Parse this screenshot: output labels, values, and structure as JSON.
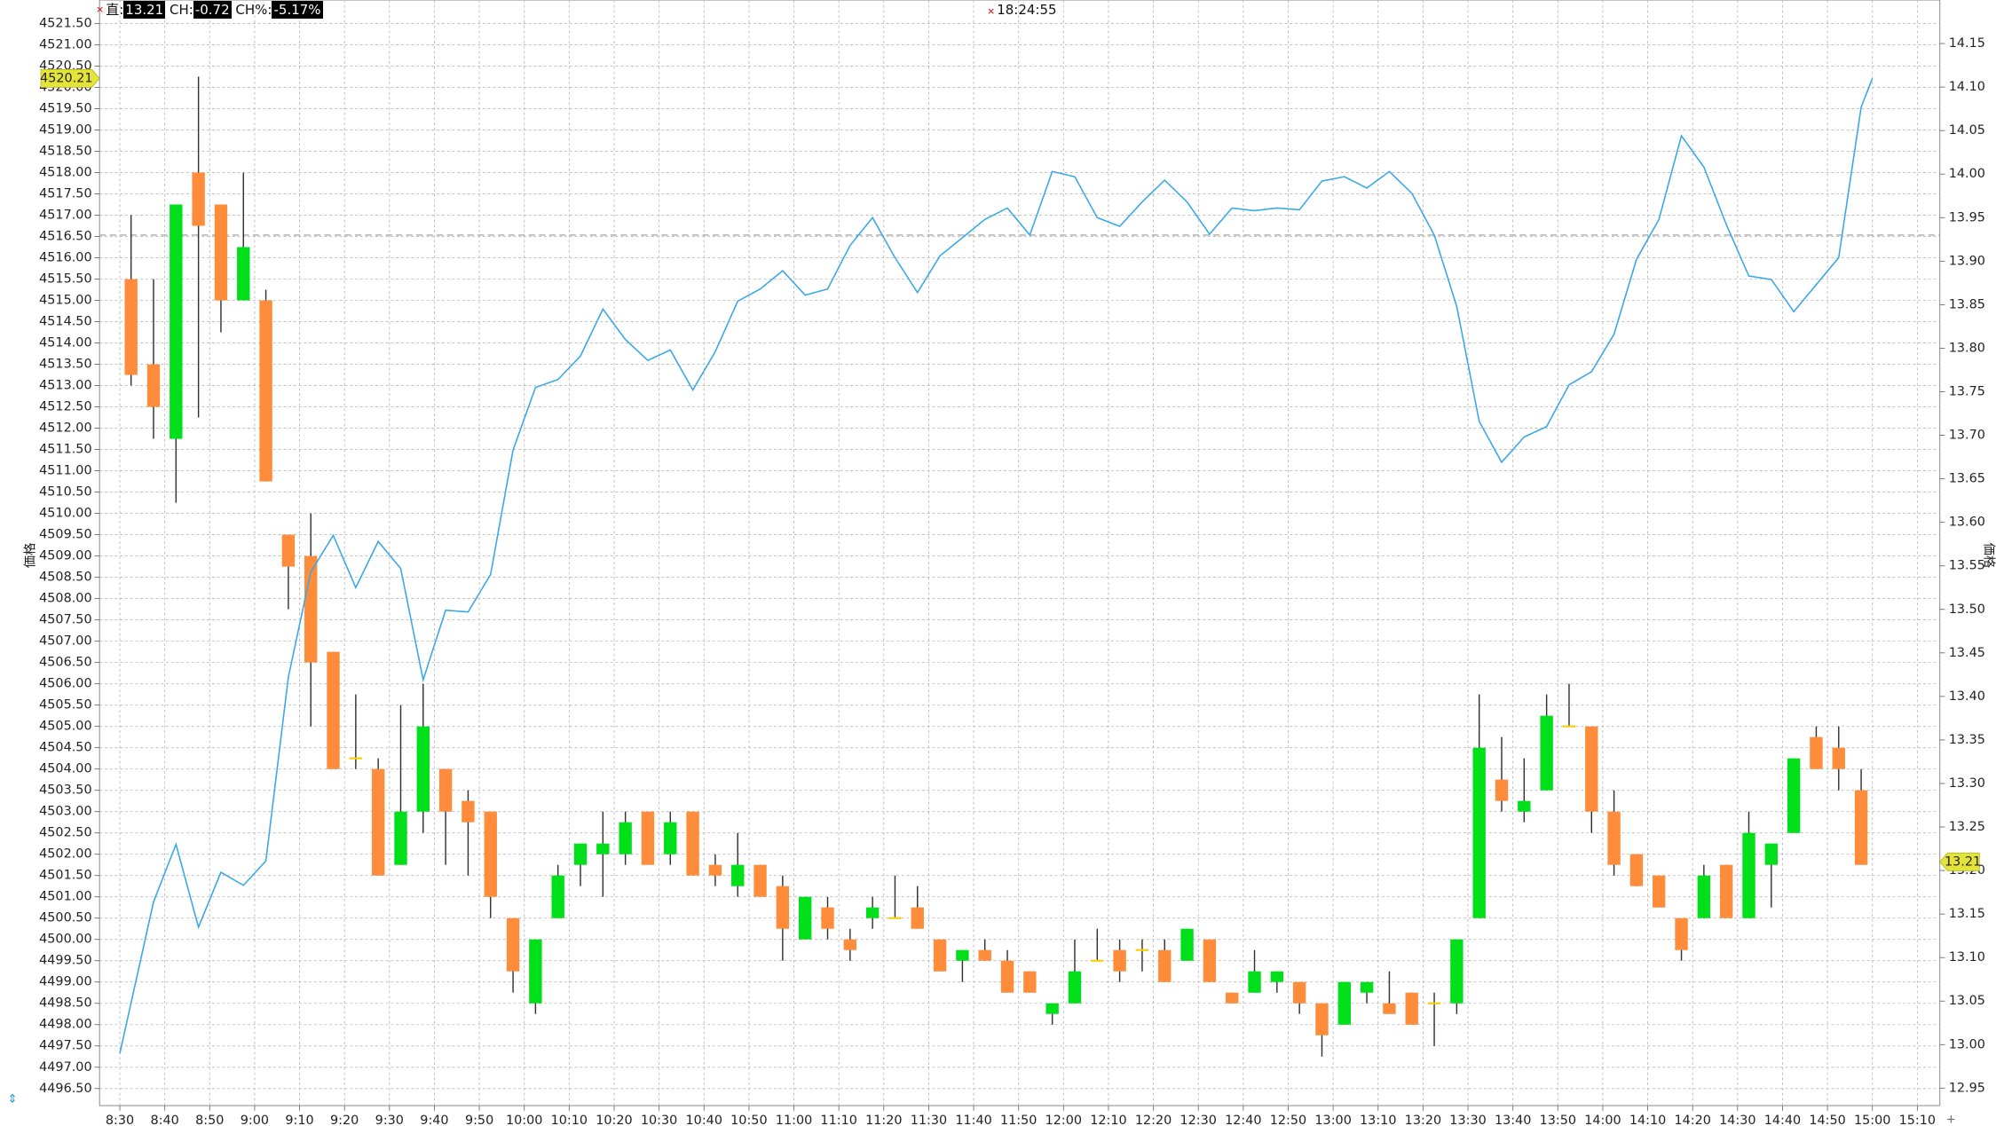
{
  "header": {
    "price_label": "直:",
    "price": "13.21",
    "change_label": "CH:",
    "change": "-0.72",
    "change_pct_label": "CH%:",
    "change_pct": "-5.17%",
    "time": "18:24:55"
  },
  "chart_data": {
    "type": "candlestick",
    "y_label": "価格",
    "y2_label": "価格",
    "grid": true,
    "up_color": "#00e01a",
    "down_color": "#ff8c3a",
    "doji_color": "#f5d000",
    "x": [
      512.5,
      517.5,
      522.5,
      527.5,
      532.5,
      537.5,
      542.5,
      547.5,
      552.5,
      557.5,
      562.5,
      567.5,
      572.5,
      577.5,
      582.5,
      587.5,
      592.5,
      597.5,
      602.5,
      607.5,
      612.5,
      617.5,
      622.5,
      627.5,
      632.5,
      637.5,
      642.5,
      647.5,
      652.5,
      657.5,
      662.5,
      667.5,
      672.5,
      677.5,
      682.5,
      687.5,
      692.5,
      697.5,
      702.5,
      707.5,
      712.5,
      717.5,
      722.5,
      727.5,
      732.5,
      737.5,
      742.5,
      747.5,
      752.5,
      757.5,
      762.5,
      767.5,
      772.5,
      777.5,
      782.5,
      787.5,
      792.5,
      797.5,
      802.5,
      807.5,
      812.5,
      817.5,
      822.5,
      827.5,
      832.5,
      837.5,
      842.5,
      847.5,
      852.5,
      857.5,
      862.5,
      867.5,
      872.5,
      877.5,
      882.5,
      887.5,
      892.5,
      897.5
    ],
    "open": [
      4515.5,
      4513.5,
      4511.75,
      4518.0,
      4517.25,
      4515.0,
      4515.0,
      4509.5,
      4509.0,
      4506.75,
      4504.25,
      4504.0,
      4501.75,
      4503.0,
      4504.0,
      4503.25,
      4503.0,
      4500.5,
      4498.5,
      4500.5,
      4501.75,
      4502.0,
      4502.0,
      4503.0,
      4502.0,
      4503.0,
      4501.75,
      4501.25,
      4501.75,
      4501.25,
      4500.0,
      4500.75,
      4500.0,
      4500.5,
      4500.5,
      4500.75,
      4500.0,
      4499.5,
      4499.75,
      4499.5,
      4499.25,
      4498.25,
      4498.5,
      4499.5,
      4499.75,
      4499.75,
      4499.75,
      4499.5,
      4500.0,
      4498.75,
      4498.75,
      4499.0,
      4499.0,
      4498.5,
      4498.0,
      4498.75,
      4498.5,
      4498.75,
      4498.5,
      4498.5,
      4500.5,
      4503.75,
      4503.0,
      4503.5,
      4505.0,
      4505.0,
      4503.0,
      4502.0,
      4501.5,
      4500.5,
      4500.5,
      4501.75,
      4500.5,
      4501.75,
      4502.5,
      4504.75,
      4504.5,
      4503.5
    ],
    "high": [
      4517.0,
      4515.5,
      4517.25,
      4520.25,
      4517.25,
      4518.0,
      4515.25,
      4509.5,
      4510.0,
      4506.75,
      4505.75,
      4504.25,
      4505.5,
      4506.0,
      4504.0,
      4503.5,
      4503.0,
      4500.5,
      4500.0,
      4501.75,
      4502.25,
      4503.0,
      4503.0,
      4503.0,
      4503.0,
      4503.0,
      4502.0,
      4502.5,
      4501.75,
      4501.5,
      4501.0,
      4501.0,
      4500.25,
      4501.0,
      4501.5,
      4501.25,
      4500.0,
      4499.75,
      4500.0,
      4499.75,
      4499.25,
      4498.5,
      4500.0,
      4500.25,
      4500.0,
      4500.0,
      4500.0,
      4500.25,
      4500.0,
      4498.75,
      4499.75,
      4499.25,
      4499.0,
      4498.5,
      4499.0,
      4499.0,
      4499.25,
      4498.75,
      4498.75,
      4500.0,
      4505.75,
      4504.75,
      4504.25,
      4505.75,
      4506.0,
      4505.0,
      4503.5,
      4502.0,
      4501.5,
      4500.5,
      4501.75,
      4501.75,
      4503.0,
      4502.25,
      4504.25,
      4505.0,
      4505.0,
      4504.0
    ],
    "low": [
      4513.0,
      4511.75,
      4510.25,
      4512.25,
      4514.25,
      4515.0,
      4510.75,
      4507.75,
      4505.0,
      4504.0,
      4504.0,
      4501.5,
      4501.75,
      4502.5,
      4501.75,
      4501.5,
      4500.5,
      4498.75,
      4498.25,
      4500.5,
      4501.25,
      4501.0,
      4501.75,
      4501.75,
      4501.75,
      4501.5,
      4501.25,
      4501.0,
      4501.0,
      4499.5,
      4500.0,
      4500.0,
      4499.5,
      4500.25,
      4500.5,
      4500.25,
      4499.25,
      4499.0,
      4499.5,
      4498.75,
      4498.75,
      4498.0,
      4498.5,
      4499.5,
      4499.0,
      4499.25,
      4499.0,
      4499.5,
      4499.0,
      4498.5,
      4498.75,
      4498.75,
      4498.25,
      4497.25,
      4498.0,
      4498.5,
      4498.25,
      4498.0,
      4497.5,
      4498.25,
      4500.5,
      4503.0,
      4502.75,
      4503.5,
      4505.0,
      4502.5,
      4501.5,
      4501.25,
      4500.75,
      4499.5,
      4500.5,
      4500.5,
      4500.5,
      4500.75,
      4502.5,
      4504.0,
      4503.5,
      4501.75
    ],
    "close": [
      4513.25,
      4512.5,
      4517.25,
      4516.75,
      4515.0,
      4516.25,
      4510.75,
      4508.75,
      4506.5,
      4504.0,
      4504.25,
      4501.5,
      4503.0,
      4505.0,
      4503.0,
      4502.75,
      4501.0,
      4499.25,
      4500.0,
      4501.5,
      4502.25,
      4502.25,
      4502.75,
      4501.75,
      4502.75,
      4501.5,
      4501.5,
      4501.75,
      4501.0,
      4500.25,
      4501.0,
      4500.25,
      4499.75,
      4500.75,
      4500.5,
      4500.25,
      4499.25,
      4499.75,
      4499.5,
      4498.75,
      4498.75,
      4498.5,
      4499.25,
      4499.5,
      4499.25,
      4499.75,
      4499.0,
      4500.25,
      4499.0,
      4498.5,
      4499.25,
      4499.25,
      4498.5,
      4497.75,
      4499.0,
      4499.0,
      4498.25,
      4498.0,
      4498.5,
      4500.0,
      4504.5,
      4503.25,
      4503.25,
      4505.25,
      4505.0,
      4503.0,
      4501.75,
      4501.25,
      4500.75,
      4499.75,
      4501.5,
      4500.5,
      4502.5,
      4502.25,
      4504.25,
      4504.0,
      4504.0,
      4501.75
    ],
    "line": {
      "type": "line",
      "axis": "y2",
      "color": "#3aa8e8",
      "x": [
        510,
        517.5,
        522.5,
        527.5,
        532.5,
        537.5,
        542.5,
        547.5,
        552.5,
        557.5,
        562.5,
        567.5,
        572.5,
        577.5,
        582.5,
        587.5,
        592.5,
        597.5,
        602.5,
        607.5,
        612.5,
        617.5,
        622.5,
        627.5,
        632.5,
        637.5,
        642.5,
        647.5,
        652.5,
        657.5,
        662.5,
        667.5,
        672.5,
        677.5,
        682.5,
        687.5,
        692.5,
        697.5,
        702.5,
        707.5,
        712.5,
        717.5,
        722.5,
        727.5,
        732.5,
        737.5,
        742.5,
        747.5,
        752.5,
        757.5,
        762.5,
        767.5,
        772.5,
        777.5,
        782.5,
        787.5,
        792.5,
        797.5,
        802.5,
        807.5,
        812.5,
        817.5,
        822.5,
        827.5,
        832.5,
        837.5,
        842.5,
        847.5,
        852.5,
        857.5,
        862.5,
        867.5,
        872.5,
        877.5,
        882.5,
        887.5,
        892.5,
        897.5,
        900
      ],
      "values": [
        12.99,
        13.164,
        13.23,
        13.135,
        13.198,
        13.183,
        13.211,
        13.422,
        13.543,
        13.585,
        13.525,
        13.578,
        13.547,
        13.419,
        13.499,
        13.497,
        13.54,
        13.683,
        13.755,
        13.764,
        13.791,
        13.845,
        13.81,
        13.786,
        13.798,
        13.752,
        13.796,
        13.854,
        13.868,
        13.889,
        13.861,
        13.868,
        13.918,
        13.95,
        13.904,
        13.864,
        13.906,
        13.927,
        13.948,
        13.961,
        13.93,
        14.003,
        13.997,
        13.95,
        13.94,
        13.968,
        13.993,
        13.968,
        13.931,
        13.961,
        13.958,
        13.961,
        13.959,
        13.992,
        13.997,
        13.984,
        14.003,
        13.978,
        13.93,
        13.848,
        13.716,
        13.669,
        13.698,
        13.71,
        13.758,
        13.773,
        13.816,
        13.902,
        13.948,
        14.044,
        14.008,
        13.942,
        13.883,
        13.879,
        13.842,
        13.873,
        13.904,
        14.077,
        14.11
      ]
    },
    "y2_ref_line": 13.93,
    "y_marker": 4520.21,
    "y2_marker": 13.21,
    "xlim": [
      505.5,
      915
    ],
    "xticks": [
      {
        "value": 510,
        "label": "8:30"
      },
      {
        "value": 520,
        "label": "8:40"
      },
      {
        "value": 530,
        "label": "8:50"
      },
      {
        "value": 540,
        "label": "9:00"
      },
      {
        "value": 550,
        "label": "9:10"
      },
      {
        "value": 560,
        "label": "9:20"
      },
      {
        "value": 570,
        "label": "9:30"
      },
      {
        "value": 580,
        "label": "9:40"
      },
      {
        "value": 590,
        "label": "9:50"
      },
      {
        "value": 600,
        "label": "10:00"
      },
      {
        "value": 610,
        "label": "10:10"
      },
      {
        "value": 620,
        "label": "10:20"
      },
      {
        "value": 630,
        "label": "10:30"
      },
      {
        "value": 640,
        "label": "10:40"
      },
      {
        "value": 650,
        "label": "10:50"
      },
      {
        "value": 660,
        "label": "11:00"
      },
      {
        "value": 670,
        "label": "11:10"
      },
      {
        "value": 680,
        "label": "11:20"
      },
      {
        "value": 690,
        "label": "11:30"
      },
      {
        "value": 700,
        "label": "11:40"
      },
      {
        "value": 710,
        "label": "11:50"
      },
      {
        "value": 720,
        "label": "12:00"
      },
      {
        "value": 730,
        "label": "12:10"
      },
      {
        "value": 740,
        "label": "12:20"
      },
      {
        "value": 750,
        "label": "12:30"
      },
      {
        "value": 760,
        "label": "12:40"
      },
      {
        "value": 770,
        "label": "12:50"
      },
      {
        "value": 780,
        "label": "13:00"
      },
      {
        "value": 790,
        "label": "13:10"
      },
      {
        "value": 800,
        "label": "13:20"
      },
      {
        "value": 810,
        "label": "13:30"
      },
      {
        "value": 820,
        "label": "13:40"
      },
      {
        "value": 830,
        "label": "13:50"
      },
      {
        "value": 840,
        "label": "14:00"
      },
      {
        "value": 850,
        "label": "14:10"
      },
      {
        "value": 860,
        "label": "14:20"
      },
      {
        "value": 870,
        "label": "14:30"
      },
      {
        "value": 880,
        "label": "14:40"
      },
      {
        "value": 890,
        "label": "14:50"
      },
      {
        "value": 900,
        "label": "15:00"
      },
      {
        "value": 910,
        "label": "15:10"
      }
    ],
    "ylim": [
      4496.1,
      4522.05
    ],
    "yticks": [
      {
        "value": 4496.5,
        "label": "4496.50"
      },
      {
        "value": 4497,
        "label": "4497.00"
      },
      {
        "value": 4497.5,
        "label": "4497.50"
      },
      {
        "value": 4498,
        "label": "4498.00"
      },
      {
        "value": 4498.5,
        "label": "4498.50"
      },
      {
        "value": 4499,
        "label": "4499.00"
      },
      {
        "value": 4499.5,
        "label": "4499.50"
      },
      {
        "value": 4500,
        "label": "4500.00"
      },
      {
        "value": 4500.5,
        "label": "4500.50"
      },
      {
        "value": 4501,
        "label": "4501.00"
      },
      {
        "value": 4501.5,
        "label": "4501.50"
      },
      {
        "value": 4502,
        "label": "4502.00"
      },
      {
        "value": 4502.5,
        "label": "4502.50"
      },
      {
        "value": 4503,
        "label": "4503.00"
      },
      {
        "value": 4503.5,
        "label": "4503.50"
      },
      {
        "value": 4504,
        "label": "4504.00"
      },
      {
        "value": 4504.5,
        "label": "4504.50"
      },
      {
        "value": 4505,
        "label": "4505.00"
      },
      {
        "value": 4505.5,
        "label": "4505.50"
      },
      {
        "value": 4506,
        "label": "4506.00"
      },
      {
        "value": 4506.5,
        "label": "4506.50"
      },
      {
        "value": 4507,
        "label": "4507.00"
      },
      {
        "value": 4507.5,
        "label": "4507.50"
      },
      {
        "value": 4508,
        "label": "4508.00"
      },
      {
        "value": 4508.5,
        "label": "4508.50"
      },
      {
        "value": 4509,
        "label": "4509.00"
      },
      {
        "value": 4509.5,
        "label": "4509.50"
      },
      {
        "value": 4510,
        "label": "4510.00"
      },
      {
        "value": 4510.5,
        "label": "4510.50"
      },
      {
        "value": 4511,
        "label": "4511.00"
      },
      {
        "value": 4511.5,
        "label": "4511.50"
      },
      {
        "value": 4512,
        "label": "4512.00"
      },
      {
        "value": 4512.5,
        "label": "4512.50"
      },
      {
        "value": 4513,
        "label": "4513.00"
      },
      {
        "value": 4513.5,
        "label": "4513.50"
      },
      {
        "value": 4514,
        "label": "4514.00"
      },
      {
        "value": 4514.5,
        "label": "4514.50"
      },
      {
        "value": 4515,
        "label": "4515.00"
      },
      {
        "value": 4515.5,
        "label": "4515.50"
      },
      {
        "value": 4516,
        "label": "4516.00"
      },
      {
        "value": 4516.5,
        "label": "4516.50"
      },
      {
        "value": 4517,
        "label": "4517.00"
      },
      {
        "value": 4517.5,
        "label": "4517.50"
      },
      {
        "value": 4518,
        "label": "4518.00"
      },
      {
        "value": 4518.5,
        "label": "4518.50"
      },
      {
        "value": 4519,
        "label": "4519.00"
      },
      {
        "value": 4519.5,
        "label": "4519.50"
      },
      {
        "value": 4520,
        "label": "4520.00"
      },
      {
        "value": 4520.5,
        "label": "4520.50"
      },
      {
        "value": 4521,
        "label": "4521.00"
      },
      {
        "value": 4521.5,
        "label": "4521.50"
      }
    ],
    "y2lim": [
      12.93,
      14.2
    ],
    "y2ticks": [
      12.95,
      {
        "value": 13.0,
        "label": "13.00"
      },
      13.05,
      {
        "value": 13.1,
        "label": "13.10"
      },
      13.15,
      {
        "value": 13.2,
        "label": "13.20"
      },
      13.25,
      {
        "value": 13.3,
        "label": "13.30"
      },
      13.35,
      {
        "value": 13.4,
        "label": "13.40"
      },
      13.45,
      {
        "value": 13.5,
        "label": "13.50"
      },
      13.55,
      {
        "value": 13.6,
        "label": "13.60"
      },
      13.65,
      {
        "value": 13.7,
        "label": "13.70"
      },
      13.75,
      {
        "value": 13.8,
        "label": "13.80"
      },
      13.85,
      {
        "value": 13.9,
        "label": "13.90"
      },
      13.95,
      {
        "value": 14.0,
        "label": "14.00"
      },
      14.05,
      {
        "value": 14.1,
        "label": "14.10"
      },
      14.15
    ]
  }
}
